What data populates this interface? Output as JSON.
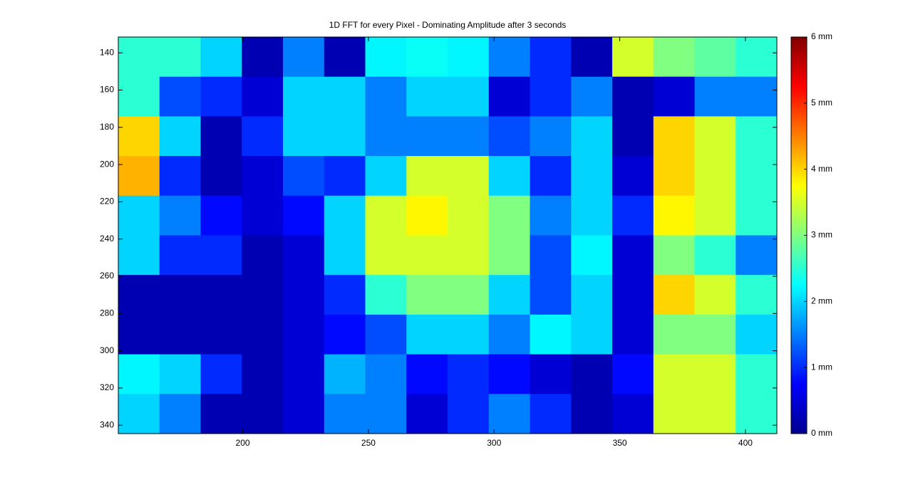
{
  "chart_data": {
    "type": "heatmap",
    "title": "1D FFT for every Pixel - Dominating Amplitude after 3 seconds",
    "colormap": "jet",
    "xlim": [
      150.5,
      412.5
    ],
    "ylim": [
      344.5,
      131.5
    ],
    "xticks": [
      200,
      250,
      300,
      350,
      400
    ],
    "yticks": [
      140,
      160,
      180,
      200,
      220,
      240,
      260,
      280,
      300,
      320,
      340
    ],
    "zlim": [
      0,
      6
    ],
    "colorbar_ticks": [
      {
        "value": 0,
        "label": "0 mm"
      },
      {
        "value": 1,
        "label": "1 mm"
      },
      {
        "value": 2,
        "label": "2 mm"
      },
      {
        "value": 3,
        "label": "3 mm"
      },
      {
        "value": 4,
        "label": "4 mm"
      },
      {
        "value": 5,
        "label": "5 mm"
      },
      {
        "value": 6,
        "label": "6 mm"
      }
    ],
    "values": [
      [
        2.5,
        2.5,
        2.0,
        0.3,
        1.5,
        0.3,
        2.2,
        2.3,
        2.2,
        1.5,
        1.0,
        0.3,
        3.5,
        3.0,
        2.8,
        2.5
      ],
      [
        2.5,
        1.2,
        1.0,
        0.5,
        2.0,
        2.0,
        1.5,
        2.0,
        2.0,
        0.5,
        1.0,
        1.5,
        0.3,
        0.5,
        1.5,
        1.5
      ],
      [
        4.0,
        2.0,
        0.3,
        1.0,
        2.0,
        2.0,
        1.5,
        1.5,
        1.5,
        1.2,
        1.5,
        2.0,
        0.3,
        4.0,
        3.5,
        2.5
      ],
      [
        4.2,
        1.0,
        0.3,
        0.5,
        1.2,
        1.0,
        2.0,
        3.5,
        3.5,
        2.0,
        1.0,
        2.0,
        0.5,
        4.0,
        3.5,
        2.5
      ],
      [
        2.0,
        1.5,
        0.8,
        0.5,
        0.8,
        2.0,
        3.5,
        3.8,
        3.5,
        3.0,
        1.5,
        2.0,
        1.0,
        3.8,
        3.5,
        2.5
      ],
      [
        2.0,
        1.0,
        1.0,
        0.3,
        0.5,
        2.0,
        3.5,
        3.5,
        3.5,
        3.0,
        1.2,
        2.2,
        0.5,
        3.0,
        2.5,
        1.5
      ],
      [
        0.3,
        0.3,
        0.3,
        0.3,
        0.5,
        1.0,
        2.5,
        3.0,
        3.0,
        2.0,
        1.2,
        2.0,
        0.5,
        4.0,
        3.5,
        2.5
      ],
      [
        0.3,
        0.3,
        0.3,
        0.3,
        0.5,
        0.8,
        1.2,
        2.0,
        2.0,
        1.5,
        2.2,
        2.0,
        0.5,
        3.0,
        3.0,
        2.0
      ],
      [
        2.2,
        2.0,
        1.0,
        0.3,
        0.5,
        1.8,
        1.5,
        0.8,
        1.0,
        0.8,
        0.5,
        0.3,
        0.8,
        3.5,
        3.5,
        2.5
      ],
      [
        2.0,
        1.5,
        0.3,
        0.3,
        0.5,
        1.5,
        1.5,
        0.5,
        1.0,
        1.5,
        1.0,
        0.3,
        0.5,
        3.5,
        3.5,
        2.5
      ]
    ]
  }
}
